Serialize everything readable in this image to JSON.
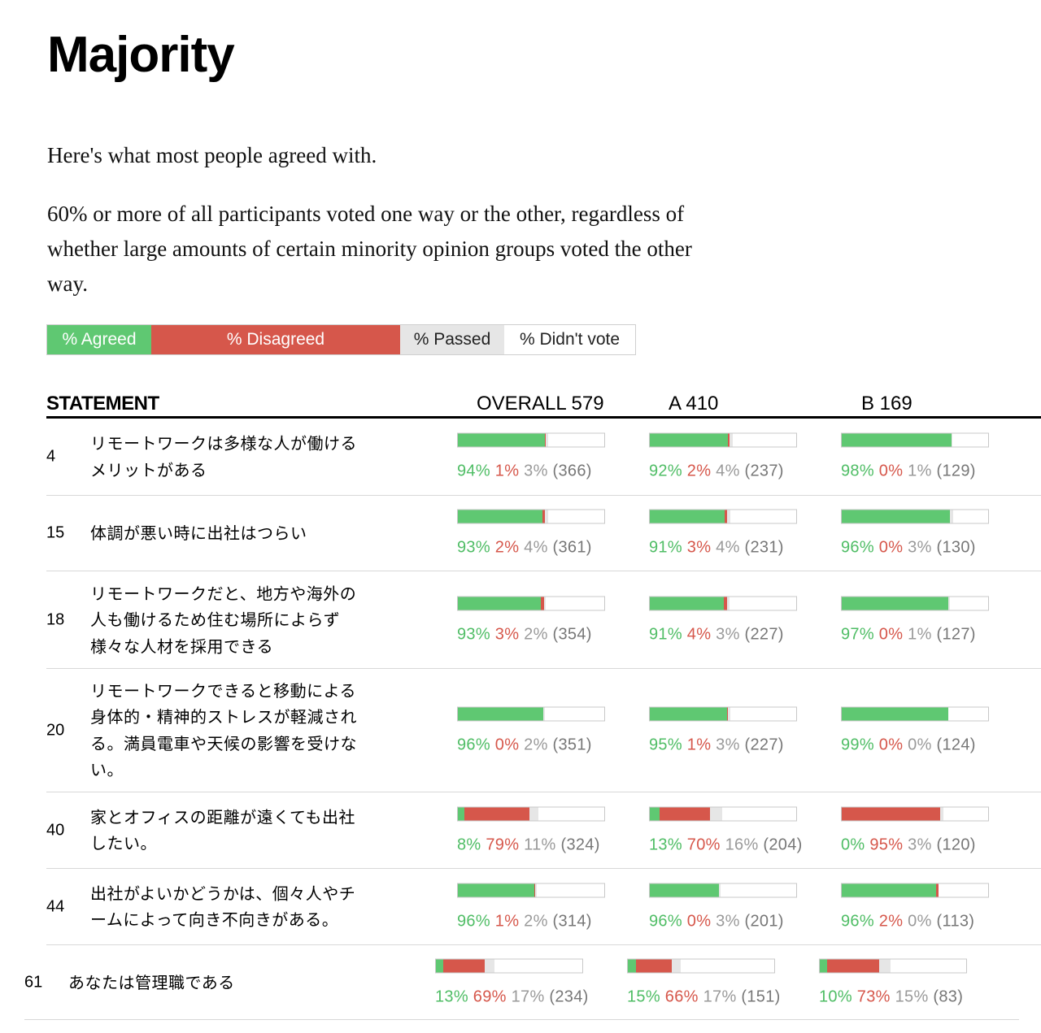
{
  "title": "Majority",
  "intro": "Here's what most people agreed with.",
  "description": "60% or more of all participants voted one way or the other, regardless of whether large amounts of certain minority opinion groups voted the other way.",
  "legend": {
    "agreed": "% Agreed",
    "disagreed": "% Disagreed",
    "passed": "% Passed",
    "didnt_vote": "% Didn't vote"
  },
  "colors": {
    "agreed": "#5fc872",
    "disagreed": "#d6574b",
    "passed": "#e6e6e6",
    "didnt_vote": "#ffffff"
  },
  "headers": {
    "statement": "STATEMENT",
    "overall": "OVERALL 579",
    "a": "A 410",
    "b": "B 169"
  },
  "group_sizes": [
    579,
    410,
    169
  ],
  "rows": [
    {
      "id": "4",
      "text": "リモートワークは多様な人が働けるメリットがある",
      "groups": [
        {
          "agree": 94,
          "disagree": 1,
          "pass": 3,
          "votes": 366,
          "agree_label": "94%",
          "disagree_label": "1%",
          "pass_label": "3%",
          "count_label": "(366)"
        },
        {
          "agree": 92,
          "disagree": 2,
          "pass": 4,
          "votes": 237,
          "agree_label": "92%",
          "disagree_label": "2%",
          "pass_label": "4%",
          "count_label": "(237)"
        },
        {
          "agree": 98,
          "disagree": 0,
          "pass": 1,
          "votes": 129,
          "agree_label": "98%",
          "disagree_label": "0%",
          "pass_label": "1%",
          "count_label": "(129)"
        }
      ]
    },
    {
      "id": "15",
      "text": "体調が悪い時に出社はつらい",
      "groups": [
        {
          "agree": 93,
          "disagree": 2,
          "pass": 4,
          "votes": 361,
          "agree_label": "93%",
          "disagree_label": "2%",
          "pass_label": "4%",
          "count_label": "(361)"
        },
        {
          "agree": 91,
          "disagree": 3,
          "pass": 4,
          "votes": 231,
          "agree_label": "91%",
          "disagree_label": "3%",
          "pass_label": "4%",
          "count_label": "(231)"
        },
        {
          "agree": 96,
          "disagree": 0,
          "pass": 3,
          "votes": 130,
          "agree_label": "96%",
          "disagree_label": "0%",
          "pass_label": "3%",
          "count_label": "(130)"
        }
      ]
    },
    {
      "id": "18",
      "text": "リモートワークだと、地方や海外の人も働けるため住む場所によらず様々な人材を採用できる",
      "groups": [
        {
          "agree": 93,
          "disagree": 3,
          "pass": 2,
          "votes": 354,
          "agree_label": "93%",
          "disagree_label": "3%",
          "pass_label": "2%",
          "count_label": "(354)"
        },
        {
          "agree": 91,
          "disagree": 4,
          "pass": 3,
          "votes": 227,
          "agree_label": "91%",
          "disagree_label": "4%",
          "pass_label": "3%",
          "count_label": "(227)"
        },
        {
          "agree": 97,
          "disagree": 0,
          "pass": 1,
          "votes": 127,
          "agree_label": "97%",
          "disagree_label": "0%",
          "pass_label": "1%",
          "count_label": "(127)"
        }
      ]
    },
    {
      "id": "20",
      "text": "リモートワークできると移動による身体的・精神的ストレスが軽減される。満員電車や天候の影響を受けない。",
      "groups": [
        {
          "agree": 96,
          "disagree": 0,
          "pass": 2,
          "votes": 351,
          "agree_label": "96%",
          "disagree_label": "0%",
          "pass_label": "2%",
          "count_label": "(351)"
        },
        {
          "agree": 95,
          "disagree": 1,
          "pass": 3,
          "votes": 227,
          "agree_label": "95%",
          "disagree_label": "1%",
          "pass_label": "3%",
          "count_label": "(227)"
        },
        {
          "agree": 99,
          "disagree": 0,
          "pass": 0,
          "votes": 124,
          "agree_label": "99%",
          "disagree_label": "0%",
          "pass_label": "0%",
          "count_label": "(124)"
        }
      ]
    },
    {
      "id": "40",
      "text": "家とオフィスの距離が遠くても出社したい。",
      "groups": [
        {
          "agree": 8,
          "disagree": 79,
          "pass": 11,
          "votes": 324,
          "agree_label": "8%",
          "disagree_label": "79%",
          "pass_label": "11%",
          "count_label": "(324)"
        },
        {
          "agree": 13,
          "disagree": 70,
          "pass": 16,
          "votes": 204,
          "agree_label": "13%",
          "disagree_label": "70%",
          "pass_label": "16%",
          "count_label": "(204)"
        },
        {
          "agree": 0,
          "disagree": 95,
          "pass": 3,
          "votes": 120,
          "agree_label": "0%",
          "disagree_label": "95%",
          "pass_label": "3%",
          "count_label": "(120)"
        }
      ]
    },
    {
      "id": "44",
      "text": "出社がよいかどうかは、個々人やチームによって向き不向きがある。",
      "groups": [
        {
          "agree": 96,
          "disagree": 1,
          "pass": 2,
          "votes": 314,
          "agree_label": "96%",
          "disagree_label": "1%",
          "pass_label": "2%",
          "count_label": "(314)"
        },
        {
          "agree": 96,
          "disagree": 0,
          "pass": 3,
          "votes": 201,
          "agree_label": "96%",
          "disagree_label": "0%",
          "pass_label": "3%",
          "count_label": "(201)"
        },
        {
          "agree": 96,
          "disagree": 2,
          "pass": 0,
          "votes": 113,
          "agree_label": "96%",
          "disagree_label": "2%",
          "pass_label": "0%",
          "count_label": "(113)"
        }
      ]
    },
    {
      "id": "61",
      "text": "あなたは管理職である",
      "groups": [
        {
          "agree": 13,
          "disagree": 69,
          "pass": 17,
          "votes": 234,
          "agree_label": "13%",
          "disagree_label": "69%",
          "pass_label": "17%",
          "count_label": "(234)"
        },
        {
          "agree": 15,
          "disagree": 66,
          "pass": 17,
          "votes": 151,
          "agree_label": "15%",
          "disagree_label": "66%",
          "pass_label": "17%",
          "count_label": "(151)"
        },
        {
          "agree": 10,
          "disagree": 73,
          "pass": 15,
          "votes": 83,
          "agree_label": "10%",
          "disagree_label": "73%",
          "pass_label": "15%",
          "count_label": "(83)"
        }
      ]
    }
  ]
}
